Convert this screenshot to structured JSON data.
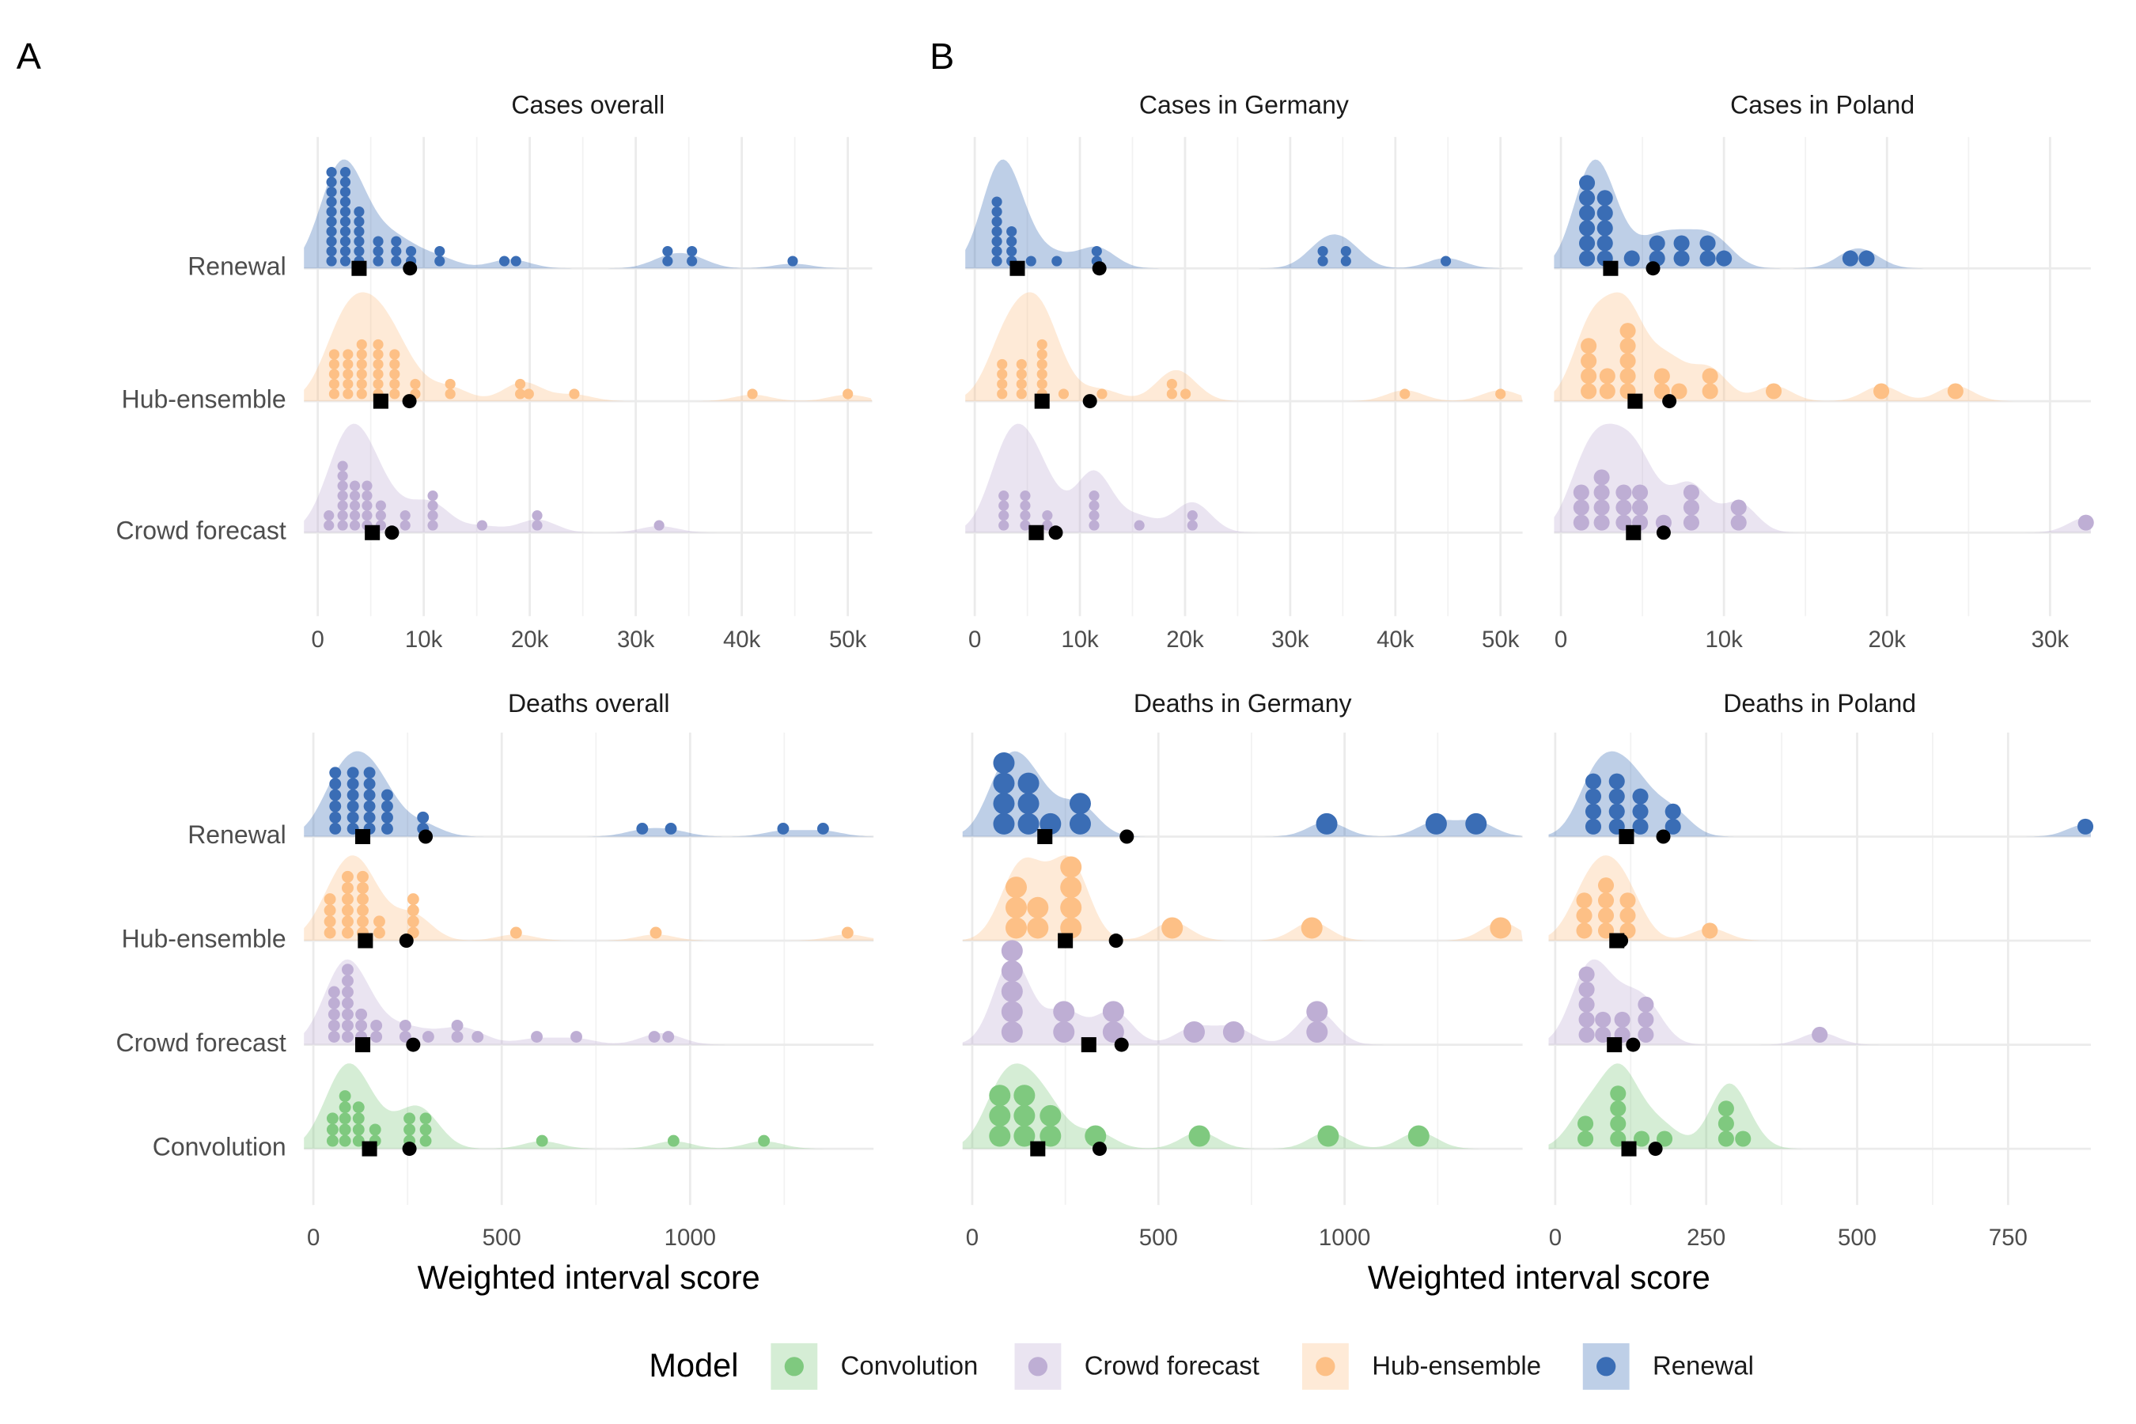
{
  "groups": [
    {
      "label": "A",
      "xlabel": "Weighted interval score"
    },
    {
      "label": "B",
      "xlabel": "Weighted interval score"
    }
  ],
  "legend": {
    "title": "Model",
    "items": [
      {
        "name": "Convolution",
        "color": "#7fc97f"
      },
      {
        "name": "Crowd forecast",
        "color": "#beaed4"
      },
      {
        "name": "Hub-ensemble",
        "color": "#fdc086"
      },
      {
        "name": "Renewal",
        "color": "#3a6db5"
      }
    ]
  },
  "chart_data": [
    {
      "type": "dotplot",
      "title": "Cases overall",
      "xlim": [
        -1300,
        52300
      ],
      "xticks": [
        0,
        {
          "value": 10000,
          "label": "10k"
        },
        {
          "value": 20000,
          "label": "20k"
        },
        {
          "value": 30000,
          "label": "30k"
        },
        {
          "value": 40000,
          "label": "40k"
        },
        {
          "value": 50000,
          "label": "50k"
        }
      ],
      "xminor": [
        5000,
        15000,
        25000,
        35000,
        45000
      ],
      "series": [
        {
          "name": "Renewal",
          "color": "#3a6db5",
          "values": [
            1300,
            1300,
            1300,
            1300,
            1300,
            1300,
            1300,
            1300,
            1300,
            1300,
            2600,
            2600,
            2600,
            2600,
            2600,
            2600,
            2600,
            2600,
            2600,
            2600,
            3900,
            3900,
            3900,
            3900,
            3900,
            3900,
            5700,
            5700,
            5700,
            7400,
            7400,
            7400,
            8800,
            8800,
            11500,
            11500,
            17600,
            18700,
            33000,
            33000,
            35300,
            35300,
            44800
          ],
          "square": 3900,
          "circle": 8700
        },
        {
          "name": "Hub-ensemble",
          "color": "#fdc086",
          "values": [
            1550,
            1550,
            1550,
            1550,
            1550,
            2850,
            2850,
            2850,
            2850,
            2850,
            4150,
            4150,
            4150,
            4150,
            4150,
            4150,
            5700,
            5700,
            5700,
            5700,
            5700,
            5700,
            7250,
            7250,
            7250,
            7250,
            7250,
            9200,
            9200,
            12500,
            12500,
            19100,
            19100,
            19900,
            24200,
            41000,
            50000
          ],
          "square": 5950,
          "circle": 8650
        },
        {
          "name": "Crowd forecast",
          "color": "#beaed4",
          "values": [
            1050,
            1050,
            2350,
            2350,
            2350,
            2350,
            2350,
            2350,
            2350,
            3500,
            3500,
            3500,
            3500,
            3500,
            4650,
            4650,
            4650,
            4650,
            4650,
            5950,
            5950,
            5950,
            8250,
            8250,
            10850,
            10850,
            10850,
            10850,
            15500,
            20700,
            20700,
            32200
          ],
          "square": 5150,
          "circle": 7000
        }
      ]
    },
    {
      "type": "dotplot",
      "title": "Cases in Germany",
      "xlim": [
        -900,
        52100
      ],
      "xticks": [
        0,
        {
          "value": 10000,
          "label": "10k"
        },
        {
          "value": 20000,
          "label": "20k"
        },
        {
          "value": 30000,
          "label": "30k"
        },
        {
          "value": 40000,
          "label": "40k"
        },
        {
          "value": 50000,
          "label": "50k"
        }
      ],
      "xminor": [
        5000,
        15000,
        25000,
        35000,
        45000
      ],
      "series": [
        {
          "name": "Renewal",
          "color": "#3a6db5",
          "values": [
            2100,
            2100,
            2100,
            2100,
            2100,
            2100,
            2100,
            3500,
            3500,
            3500,
            3500,
            5350,
            7800,
            11600,
            11600,
            33100,
            33100,
            35300,
            35300,
            44800
          ],
          "square": 4050,
          "circle": 11850
        },
        {
          "name": "Hub-ensemble",
          "color": "#fdc086",
          "values": [
            2600,
            2600,
            2600,
            2600,
            4450,
            4450,
            4450,
            4450,
            6400,
            6400,
            6400,
            6400,
            6400,
            6400,
            8450,
            12100,
            18750,
            18750,
            20050,
            40900,
            50000
          ],
          "square": 6400,
          "circle": 10950
        },
        {
          "name": "Crowd forecast",
          "color": "#beaed4",
          "values": [
            2750,
            2750,
            2750,
            2750,
            4800,
            4800,
            4800,
            4800,
            6900,
            6900,
            11350,
            11350,
            11350,
            11350,
            15650,
            20700,
            20700
          ],
          "square": 5850,
          "circle": 7700
        }
      ]
    },
    {
      "type": "dotplot",
      "title": "Cases in Poland",
      "xlim": [
        -420,
        32500
      ],
      "xticks": [
        0,
        {
          "value": 10000,
          "label": "10k"
        },
        {
          "value": 20000,
          "label": "20k"
        },
        {
          "value": 30000,
          "label": "30k"
        }
      ],
      "xminor": [
        5000,
        15000,
        25000
      ],
      "series": [
        {
          "name": "Renewal",
          "color": "#3a6db5",
          "values": [
            1600,
            1600,
            1600,
            1600,
            1600,
            1600,
            2700,
            2700,
            2700,
            2700,
            2700,
            4350,
            5900,
            5900,
            7400,
            7400,
            9000,
            9000,
            10000,
            17750,
            18750
          ],
          "square": 3050,
          "circle": 5650
        },
        {
          "name": "Hub-ensemble",
          "color": "#fdc086",
          "values": [
            1700,
            1700,
            1700,
            1700,
            2850,
            2850,
            4100,
            4100,
            4100,
            4100,
            4100,
            6200,
            6200,
            7250,
            9150,
            9150,
            13050,
            19650,
            24200
          ],
          "square": 4550,
          "circle": 6650
        },
        {
          "name": "Crowd forecast",
          "color": "#beaed4",
          "values": [
            1250,
            1250,
            1250,
            2500,
            2500,
            2500,
            2500,
            3850,
            3850,
            3850,
            4850,
            4850,
            4850,
            6300,
            8000,
            8000,
            8000,
            10900,
            10900,
            32200
          ],
          "square": 4450,
          "circle": 6300
        }
      ]
    },
    {
      "type": "dotplot",
      "title": "Deaths overall",
      "xlim": [
        -25,
        1487
      ],
      "xticks": [
        0,
        500,
        1000
      ],
      "xminor": [
        250,
        750,
        1250
      ],
      "series": [
        {
          "name": "Renewal",
          "color": "#3a6db5",
          "values": [
            58,
            58,
            58,
            58,
            58,
            58,
            105,
            105,
            105,
            105,
            105,
            105,
            149,
            149,
            149,
            149,
            149,
            149,
            196,
            196,
            196,
            196,
            291,
            291,
            873,
            949,
            1247,
            1353
          ],
          "square": 131,
          "circle": 298
        },
        {
          "name": "Hub-ensemble",
          "color": "#fdc086",
          "values": [
            44,
            44,
            44,
            44,
            91,
            91,
            91,
            91,
            91,
            91,
            131,
            131,
            131,
            131,
            131,
            131,
            175,
            175,
            265,
            265,
            265,
            265,
            538,
            909,
            1418
          ],
          "square": 138,
          "circle": 247
        },
        {
          "name": "Crowd forecast",
          "color": "#beaed4",
          "values": [
            55,
            55,
            55,
            55,
            55,
            91,
            91,
            91,
            91,
            91,
            91,
            91,
            127,
            127,
            127,
            167,
            167,
            244,
            244,
            305,
            382,
            382,
            436,
            593,
            698,
            905,
            942
          ],
          "square": 131,
          "circle": 265
        },
        {
          "name": "Convolution",
          "color": "#7fc97f",
          "values": [
            51,
            51,
            51,
            84,
            84,
            84,
            84,
            84,
            120,
            120,
            120,
            120,
            164,
            164,
            255,
            255,
            255,
            298,
            298,
            298,
            607,
            956,
            1196
          ],
          "square": 149,
          "circle": 255
        }
      ]
    },
    {
      "type": "dotplot",
      "title": "Deaths in Germany",
      "xlim": [
        -26,
        1478
      ],
      "xticks": [
        0,
        500,
        1000
      ],
      "xminor": [
        250,
        750,
        1250
      ],
      "series": [
        {
          "name": "Renewal",
          "color": "#3a6db5",
          "values": [
            85,
            85,
            85,
            85,
            151,
            151,
            151,
            210,
            290,
            290,
            952,
            1246,
            1353
          ],
          "square": 195,
          "circle": 415
        },
        {
          "name": "Hub-ensemble",
          "color": "#fdc086",
          "values": [
            118,
            118,
            118,
            176,
            176,
            265,
            265,
            265,
            265,
            537,
            912,
            1419
          ],
          "square": 250,
          "circle": 386
        },
        {
          "name": "Crowd forecast",
          "color": "#beaed4",
          "values": [
            107,
            107,
            107,
            107,
            107,
            246,
            246,
            379,
            379,
            596,
            702,
            926,
            926
          ],
          "square": 313,
          "circle": 401
        },
        {
          "name": "Convolution",
          "color": "#7fc97f",
          "values": [
            74,
            74,
            74,
            140,
            140,
            140,
            210,
            210,
            331,
            610,
            956,
            1199
          ],
          "square": 176,
          "circle": 342
        }
      ]
    },
    {
      "type": "dotplot",
      "title": "Deaths in Poland",
      "xlim": [
        -11,
        887
      ],
      "xticks": [
        0,
        250,
        500,
        750
      ],
      "xminor": [
        125,
        375,
        625
      ],
      "series": [
        {
          "name": "Renewal",
          "color": "#3a6db5",
          "values": [
            63,
            63,
            63,
            63,
            102,
            102,
            102,
            102,
            141,
            141,
            141,
            195,
            195,
            878
          ],
          "square": 118,
          "circle": 179
        },
        {
          "name": "Hub-ensemble",
          "color": "#fdc086",
          "values": [
            48,
            48,
            48,
            84,
            84,
            84,
            84,
            120,
            120,
            120,
            256
          ],
          "square": 102,
          "circle": 109
        },
        {
          "name": "Crowd forecast",
          "color": "#beaed4",
          "values": [
            52,
            52,
            52,
            52,
            52,
            79,
            79,
            111,
            111,
            150,
            150,
            150,
            438
          ],
          "square": 98,
          "circle": 129
        },
        {
          "name": "Convolution",
          "color": "#7fc97f",
          "values": [
            50,
            50,
            104,
            104,
            104,
            104,
            143,
            181,
            283,
            283,
            283,
            311
          ],
          "square": 122,
          "circle": 166
        }
      ]
    }
  ]
}
